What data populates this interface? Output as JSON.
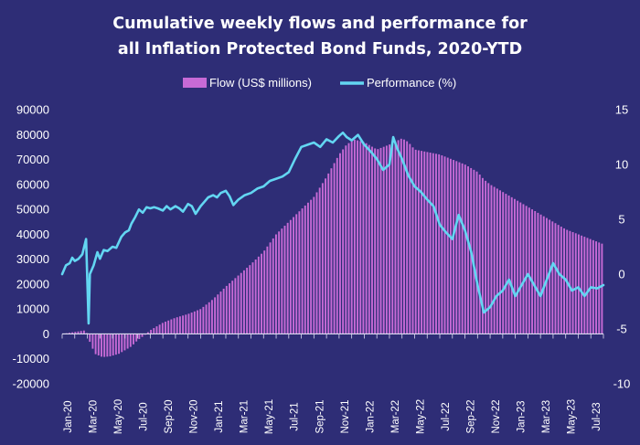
{
  "chart_data": {
    "type": "bar+line",
    "title_lines": [
      "Cumulative weekly flows and performance for",
      "all Inflation Protected Bond Funds, 2020-YTD"
    ],
    "legend": [
      "Flow (US$ millions)",
      "Performance (%)"
    ],
    "left_axis": {
      "min": -20000,
      "max": 90000,
      "step": 10000,
      "ticks": [
        "-20000",
        "-10000",
        "0",
        "10000",
        "20000",
        "30000",
        "40000",
        "50000",
        "60000",
        "70000",
        "80000",
        "90000"
      ]
    },
    "right_axis": {
      "min": -10,
      "max": 15,
      "step": 5,
      "ticks": [
        "-10",
        "-5",
        "0",
        "5",
        "10",
        "15"
      ]
    },
    "x_labels": [
      "Jan-20",
      "Mar-20",
      "May-20",
      "Jul-20",
      "Sep-20",
      "Nov-20",
      "Jan-21",
      "Mar-21",
      "May-21",
      "Jul-21",
      "Sep-21",
      "Nov-21",
      "Jan-22",
      "Mar-22",
      "May-22",
      "Jul-22",
      "Sep-22",
      "Nov-22",
      "Jan-23",
      "Mar-23",
      "May-23",
      "Jul-23"
    ],
    "x_label_months": [
      0,
      2,
      4,
      6,
      8,
      10,
      12,
      14,
      16,
      18,
      20,
      22,
      24,
      26,
      28,
      30,
      32,
      34,
      36,
      38,
      40,
      42
    ],
    "n_months": 43,
    "flow_keypoints": [
      [
        0,
        0
      ],
      [
        1,
        800
      ],
      [
        1.9,
        1500
      ],
      [
        2.1,
        -2000
      ],
      [
        2.6,
        -8000
      ],
      [
        3.2,
        -9300
      ],
      [
        3.8,
        -9000
      ],
      [
        4.5,
        -8000
      ],
      [
        5.5,
        -5000
      ],
      [
        6,
        -2500
      ],
      [
        6.6,
        -300
      ],
      [
        7,
        1500
      ],
      [
        8,
        4500
      ],
      [
        9,
        6500
      ],
      [
        10,
        8000
      ],
      [
        11,
        10000
      ],
      [
        12,
        14000
      ],
      [
        13,
        19000
      ],
      [
        14,
        23500
      ],
      [
        15,
        28000
      ],
      [
        16,
        33000
      ],
      [
        17,
        40000
      ],
      [
        18,
        45000
      ],
      [
        19,
        50000
      ],
      [
        20,
        55000
      ],
      [
        21,
        63000
      ],
      [
        22,
        72000
      ],
      [
        22.6,
        76000
      ],
      [
        23.2,
        78000
      ],
      [
        24,
        77000
      ],
      [
        25,
        74000
      ],
      [
        26,
        76000
      ],
      [
        27,
        78500
      ],
      [
        27.5,
        77000
      ],
      [
        28,
        74000
      ],
      [
        29,
        73000
      ],
      [
        30,
        72000
      ],
      [
        31,
        70000
      ],
      [
        32,
        68000
      ],
      [
        33,
        65000
      ],
      [
        33.5,
        62000
      ],
      [
        34,
        60000
      ],
      [
        35,
        57000
      ],
      [
        36,
        54000
      ],
      [
        37,
        51000
      ],
      [
        38,
        48000
      ],
      [
        39,
        45000
      ],
      [
        40,
        42000
      ],
      [
        41,
        40000
      ],
      [
        42,
        38000
      ],
      [
        43,
        36000
      ]
    ],
    "performance_keypoints": [
      [
        0,
        0
      ],
      [
        0.3,
        0.8
      ],
      [
        0.6,
        1
      ],
      [
        0.8,
        1.5
      ],
      [
        1,
        1.2
      ],
      [
        1.3,
        1.4
      ],
      [
        1.6,
        1.8
      ],
      [
        1.9,
        3.2
      ],
      [
        2.1,
        -4.5
      ],
      [
        2.2,
        0
      ],
      [
        2.5,
        0.8
      ],
      [
        2.8,
        2
      ],
      [
        3,
        1.4
      ],
      [
        3.3,
        2.2
      ],
      [
        3.6,
        2.1
      ],
      [
        4,
        2.5
      ],
      [
        4.3,
        2.4
      ],
      [
        4.7,
        3.4
      ],
      [
        5,
        3.8
      ],
      [
        5.3,
        4
      ],
      [
        5.5,
        4.6
      ],
      [
        5.8,
        5.2
      ],
      [
        6.1,
        5.9
      ],
      [
        6.4,
        5.6
      ],
      [
        6.7,
        6.1
      ],
      [
        7,
        6
      ],
      [
        7.3,
        6.1
      ],
      [
        7.6,
        6
      ],
      [
        8,
        5.8
      ],
      [
        8.3,
        6.2
      ],
      [
        8.6,
        5.9
      ],
      [
        9,
        6.2
      ],
      [
        9.3,
        6
      ],
      [
        9.6,
        5.7
      ],
      [
        10,
        6.4
      ],
      [
        10.3,
        6.2
      ],
      [
        10.6,
        5.5
      ],
      [
        11,
        6.2
      ],
      [
        11.3,
        6.6
      ],
      [
        11.6,
        7
      ],
      [
        12,
        7.2
      ],
      [
        12.3,
        7
      ],
      [
        12.6,
        7.4
      ],
      [
        13,
        7.6
      ],
      [
        13.3,
        7.1
      ],
      [
        13.6,
        6.3
      ],
      [
        14,
        6.8
      ],
      [
        14.5,
        7.2
      ],
      [
        15,
        7.4
      ],
      [
        15.5,
        7.8
      ],
      [
        16,
        8
      ],
      [
        16.5,
        8.5
      ],
      [
        17,
        8.7
      ],
      [
        17.5,
        8.9
      ],
      [
        18,
        9.3
      ],
      [
        18.5,
        10.5
      ],
      [
        19,
        11.6
      ],
      [
        19.5,
        11.8
      ],
      [
        20,
        12
      ],
      [
        20.5,
        11.6
      ],
      [
        21,
        12.3
      ],
      [
        21.5,
        12
      ],
      [
        22,
        12.6
      ],
      [
        22.3,
        12.9
      ],
      [
        22.6,
        12.5
      ],
      [
        23,
        12.2
      ],
      [
        23.5,
        12.7
      ],
      [
        24,
        11.8
      ],
      [
        24.5,
        11.2
      ],
      [
        25,
        10.5
      ],
      [
        25.5,
        9.5
      ],
      [
        26,
        10
      ],
      [
        26.3,
        12.5
      ],
      [
        26.6,
        11.5
      ],
      [
        27,
        10.5
      ],
      [
        27.5,
        9
      ],
      [
        28,
        8
      ],
      [
        28.5,
        7.5
      ],
      [
        29,
        6.8
      ],
      [
        29.5,
        6.2
      ],
      [
        30,
        4.5
      ],
      [
        30.5,
        3.8
      ],
      [
        31,
        3.2
      ],
      [
        31.5,
        5.4
      ],
      [
        32,
        4
      ],
      [
        32.5,
        2
      ],
      [
        33,
        -1
      ],
      [
        33.5,
        -3.5
      ],
      [
        34,
        -3
      ],
      [
        34.5,
        -2
      ],
      [
        35,
        -1.5
      ],
      [
        35.5,
        -0.5
      ],
      [
        36,
        -2
      ],
      [
        36.5,
        -1
      ],
      [
        37,
        0
      ],
      [
        37.5,
        -1
      ],
      [
        38,
        -2
      ],
      [
        38.5,
        -0.5
      ],
      [
        39,
        1
      ],
      [
        39.5,
        0
      ],
      [
        40,
        -0.5
      ],
      [
        40.5,
        -1.5
      ],
      [
        41,
        -1.2
      ],
      [
        41.5,
        -2
      ],
      [
        42,
        -1.2
      ],
      [
        42.5,
        -1.3
      ],
      [
        43,
        -1
      ]
    ],
    "colors": {
      "background": "#2e2d76",
      "bars": "#c76ad6",
      "line": "#63d6f2",
      "text": "#ffffff",
      "axis": "#dcdcf0",
      "grid": "#4a49a0"
    }
  }
}
